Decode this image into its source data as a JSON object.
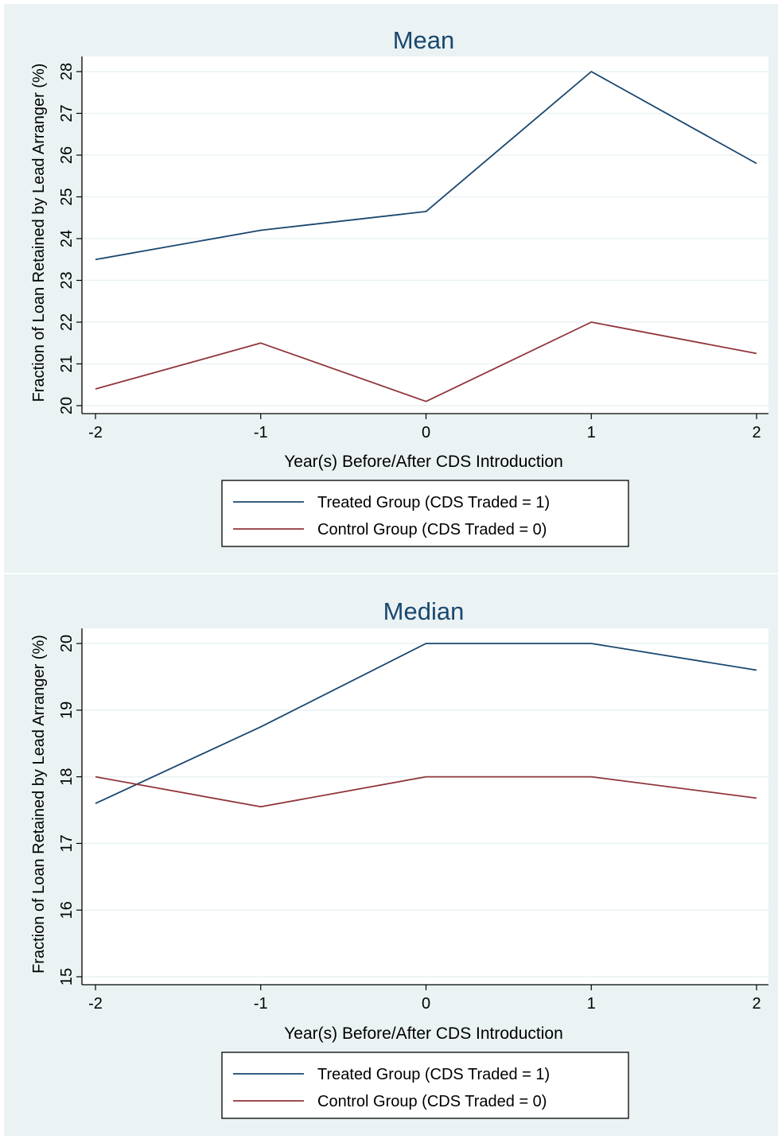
{
  "colors": {
    "outer_background": "#eaf2f3",
    "plot_background": "#ffffff",
    "grid": "#eaf2f3",
    "axis": "#000000",
    "title_text": "#1a476f",
    "treated_line": "#1a476f",
    "control_line": "#90353b"
  },
  "chart_data": [
    {
      "type": "line",
      "title": "Mean",
      "xlabel": "Year(s) Before/After CDS Introduction",
      "ylabel": "Fraction of Loan Retained by Lead Arranger (%)",
      "x": [
        -2,
        -1,
        0,
        1,
        2
      ],
      "x_ticks": [
        "-2",
        "-1",
        "0",
        "1",
        "2"
      ],
      "y_ticks": [
        "20",
        "21",
        "22",
        "23",
        "24",
        "25",
        "26",
        "27",
        "28"
      ],
      "xlim": [
        -2,
        2
      ],
      "ylim": [
        20,
        28
      ],
      "grid": true,
      "legend_position": "bottom",
      "series": [
        {
          "name": "Treated Group (CDS Traded = 1)",
          "color": "#1a476f",
          "values": [
            23.5,
            24.2,
            24.65,
            28.0,
            25.8
          ]
        },
        {
          "name": "Control Group (CDS Traded = 0)",
          "color": "#90353b",
          "values": [
            20.4,
            21.5,
            20.1,
            22.0,
            21.25
          ]
        }
      ]
    },
    {
      "type": "line",
      "title": "Median",
      "xlabel": "Year(s) Before/After CDS Introduction",
      "ylabel": "Fraction of Loan Retained by Lead Arranger (%)",
      "x": [
        -2,
        -1,
        0,
        1,
        2
      ],
      "x_ticks": [
        "-2",
        "-1",
        "0",
        "1",
        "2"
      ],
      "y_ticks": [
        "15",
        "16",
        "17",
        "18",
        "19",
        "20"
      ],
      "xlim": [
        -2,
        2
      ],
      "ylim": [
        15,
        20
      ],
      "grid": true,
      "legend_position": "bottom",
      "series": [
        {
          "name": "Treated Group (CDS Traded = 1)",
          "color": "#1a476f",
          "values": [
            17.6,
            18.75,
            20.0,
            20.0,
            19.6
          ]
        },
        {
          "name": "Control Group (CDS Traded = 0)",
          "color": "#90353b",
          "values": [
            18.0,
            17.55,
            18.0,
            18.0,
            17.68
          ]
        }
      ]
    }
  ]
}
